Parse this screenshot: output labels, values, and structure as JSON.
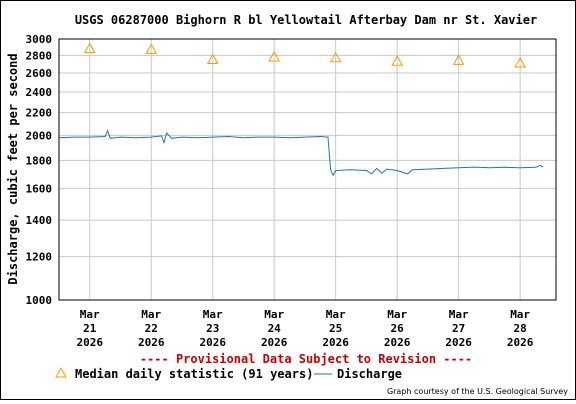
{
  "chart_data": {
    "type": "line",
    "title": "USGS 06287000 Bighorn R bl Yellowtail Afterbay Dam nr St. Xavier",
    "ylabel": "Discharge, cubic feet per second",
    "xlabel": "",
    "y_scale": "log",
    "ylim": [
      1000,
      3000
    ],
    "y_ticks": [
      "3000",
      "2800",
      "2600",
      "2400",
      "2200",
      "2000",
      "1800",
      "1600",
      "1400",
      "1200",
      "1000"
    ],
    "x_ticks": [
      {
        "month": "Mar",
        "day": "21",
        "year": "2026"
      },
      {
        "month": "Mar",
        "day": "22",
        "year": "2026"
      },
      {
        "month": "Mar",
        "day": "23",
        "year": "2026"
      },
      {
        "month": "Mar",
        "day": "24",
        "year": "2026"
      },
      {
        "month": "Mar",
        "day": "25",
        "year": "2026"
      },
      {
        "month": "Mar",
        "day": "26",
        "year": "2026"
      },
      {
        "month": "Mar",
        "day": "27",
        "year": "2026"
      },
      {
        "month": "Mar",
        "day": "28",
        "year": "2026"
      }
    ],
    "grid": true,
    "series": [
      {
        "name": "Discharge",
        "color": "#1f77b4",
        "points": [
          [
            "2026-03-20 12:00",
            1980
          ],
          [
            "2026-03-20 18:00",
            1985
          ],
          [
            "2026-03-21 00:00",
            1985
          ],
          [
            "2026-03-21 06:00",
            1990
          ],
          [
            "2026-03-21 07:00",
            2040
          ],
          [
            "2026-03-21 08:00",
            1975
          ],
          [
            "2026-03-21 12:00",
            1985
          ],
          [
            "2026-03-21 18:00",
            1980
          ],
          [
            "2026-03-22 00:00",
            1985
          ],
          [
            "2026-03-22 04:00",
            1995
          ],
          [
            "2026-03-22 05:00",
            1940
          ],
          [
            "2026-03-22 06:00",
            2020
          ],
          [
            "2026-03-22 08:00",
            1975
          ],
          [
            "2026-03-22 12:00",
            1985
          ],
          [
            "2026-03-22 18:00",
            1980
          ],
          [
            "2026-03-23 00:00",
            1985
          ],
          [
            "2026-03-23 06:00",
            1990
          ],
          [
            "2026-03-23 12:00",
            1980
          ],
          [
            "2026-03-23 18:00",
            1985
          ],
          [
            "2026-03-24 00:00",
            1985
          ],
          [
            "2026-03-24 06:00",
            1980
          ],
          [
            "2026-03-24 12:00",
            1985
          ],
          [
            "2026-03-24 18:00",
            1990
          ],
          [
            "2026-03-24 21:00",
            1985
          ],
          [
            "2026-03-24 22:00",
            1730
          ],
          [
            "2026-03-24 23:00",
            1690
          ],
          [
            "2026-03-25 00:00",
            1725
          ],
          [
            "2026-03-25 06:00",
            1730
          ],
          [
            "2026-03-25 12:00",
            1725
          ],
          [
            "2026-03-25 14:00",
            1700
          ],
          [
            "2026-03-25 16:00",
            1740
          ],
          [
            "2026-03-25 18:00",
            1705
          ],
          [
            "2026-03-25 20:00",
            1735
          ],
          [
            "2026-03-26 00:00",
            1725
          ],
          [
            "2026-03-26 04:00",
            1700
          ],
          [
            "2026-03-26 06:00",
            1730
          ],
          [
            "2026-03-26 12:00",
            1735
          ],
          [
            "2026-03-26 18:00",
            1740
          ],
          [
            "2026-03-27 00:00",
            1745
          ],
          [
            "2026-03-27 06:00",
            1750
          ],
          [
            "2026-03-27 12:00",
            1745
          ],
          [
            "2026-03-27 18:00",
            1748
          ],
          [
            "2026-03-28 00:00",
            1745
          ],
          [
            "2026-03-28 06:00",
            1748
          ],
          [
            "2026-03-28 08:00",
            1762
          ],
          [
            "2026-03-28 09:00",
            1750
          ]
        ]
      },
      {
        "name": "Median daily statistic (91 years)",
        "marker": "triangle",
        "color": "#ff9900",
        "points": [
          [
            "2026-03-21 00:00",
            2870
          ],
          [
            "2026-03-22 00:00",
            2860
          ],
          [
            "2026-03-23 00:00",
            2740
          ],
          [
            "2026-03-24 00:00",
            2770
          ],
          [
            "2026-03-25 00:00",
            2760
          ],
          [
            "2026-03-26 00:00",
            2720
          ],
          [
            "2026-03-27 00:00",
            2730
          ],
          [
            "2026-03-28 00:00",
            2700
          ]
        ]
      }
    ],
    "provisional_note": "---- Provisional Data Subject to Revision ----",
    "legend": {
      "position": "bottom",
      "median_label": "Median daily statistic (91 years)",
      "discharge_label": "Discharge"
    },
    "credit": "Graph courtesy of the U.S. Geological Survey"
  }
}
